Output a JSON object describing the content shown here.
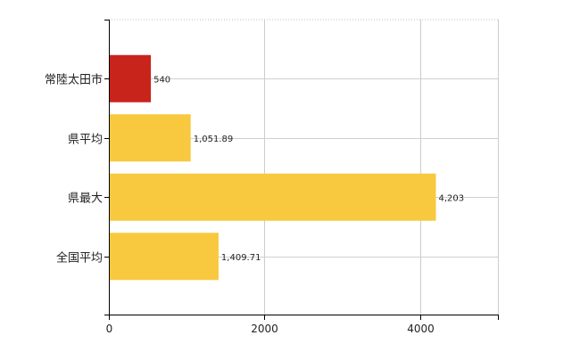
{
  "chart_data": {
    "type": "bar",
    "orientation": "horizontal",
    "categories": [
      "常陸太田市",
      "県平均",
      "県最大",
      "全国平均"
    ],
    "values": [
      540,
      1051.89,
      4203,
      1409.71
    ],
    "value_labels": [
      "540",
      "1,051.89",
      "4,203",
      "1,409.71"
    ],
    "bar_colors": [
      "#c9241b",
      "#f8c93f",
      "#f8c93f",
      "#f8c93f"
    ],
    "xlim": [
      0,
      5000
    ],
    "x_ticks": [
      0,
      2000,
      4000
    ],
    "x_tick_labels": [
      "0",
      "2000",
      "4000"
    ],
    "grid": true,
    "legend": "none",
    "title": "",
    "xlabel": "",
    "ylabel": ""
  }
}
